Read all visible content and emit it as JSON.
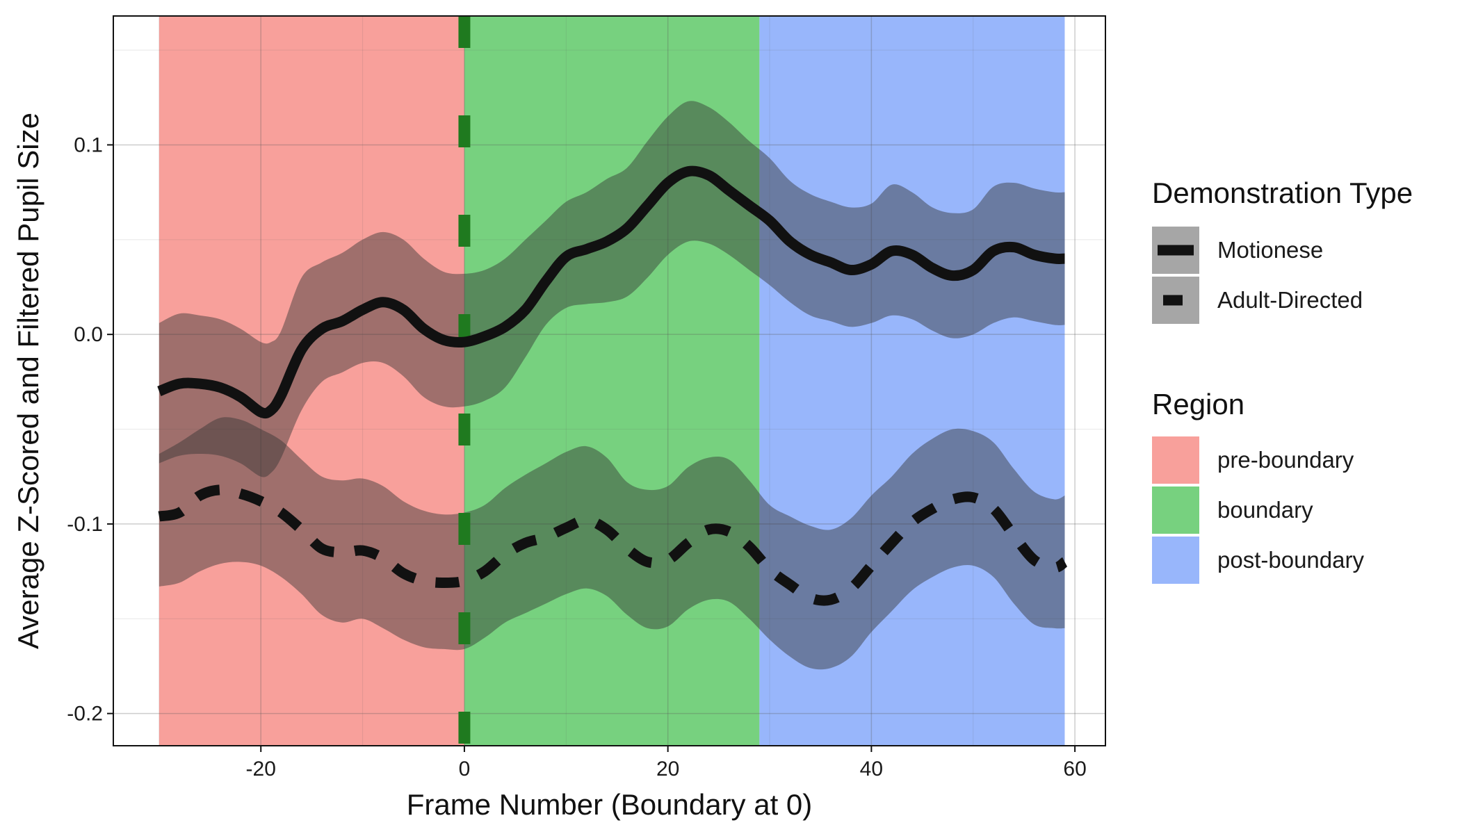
{
  "chart_data": {
    "type": "line",
    "title": "",
    "xlabel": "Frame Number (Boundary at 0)",
    "ylabel": "Average Z-Scored and Filtered Pupil Size",
    "xlim": [
      -34.5,
      63
    ],
    "ylim": [
      -0.217,
      0.168
    ],
    "xticks": [
      -20,
      0,
      20,
      40,
      60
    ],
    "xtick_labels": [
      "-20",
      "0",
      "20",
      "40",
      "60"
    ],
    "yticks": [
      -0.2,
      -0.1,
      0.0,
      0.1
    ],
    "ytick_labels": [
      "-0.2",
      "-0.1",
      "0.0",
      "0.1"
    ],
    "grid": true,
    "boundary_line": {
      "x": 0,
      "color": "#1f7a1f",
      "style": "dashed"
    },
    "regions": [
      {
        "name": "pre-boundary",
        "start": -30,
        "end": 0,
        "color": "#f8a09b"
      },
      {
        "name": "boundary",
        "start": 0,
        "end": 29,
        "color": "#77d17f"
      },
      {
        "name": "post-boundary",
        "start": 29,
        "end": 59,
        "color": "#98b6fb"
      }
    ],
    "series": [
      {
        "name": "Motionese",
        "style": "solid",
        "x": [
          -30,
          -28,
          -26,
          -24,
          -22,
          -20,
          -19,
          -18,
          -16,
          -14,
          -12,
          -10,
          -8,
          -6,
          -4,
          -2,
          0,
          2,
          4,
          6,
          8,
          10,
          12,
          14,
          16,
          18,
          20,
          22,
          24,
          26,
          28,
          30,
          32,
          34,
          36,
          38,
          40,
          42,
          44,
          46,
          48,
          50,
          52,
          54,
          56,
          58,
          59
        ],
        "y": [
          -0.03,
          -0.026,
          -0.026,
          -0.028,
          -0.033,
          -0.041,
          -0.04,
          -0.032,
          -0.008,
          0.003,
          0.007,
          0.013,
          0.017,
          0.013,
          0.003,
          -0.003,
          -0.004,
          -0.001,
          0.004,
          0.013,
          0.028,
          0.041,
          0.045,
          0.049,
          0.056,
          0.068,
          0.08,
          0.086,
          0.084,
          0.076,
          0.068,
          0.06,
          0.049,
          0.042,
          0.038,
          0.034,
          0.037,
          0.044,
          0.042,
          0.035,
          0.031,
          0.034,
          0.044,
          0.046,
          0.042,
          0.04,
          0.04
        ],
        "ci_lower": [
          -0.068,
          -0.064,
          -0.063,
          -0.064,
          -0.068,
          -0.075,
          -0.073,
          -0.065,
          -0.04,
          -0.025,
          -0.02,
          -0.015,
          -0.015,
          -0.022,
          -0.033,
          -0.038,
          -0.038,
          -0.035,
          -0.028,
          -0.012,
          0.005,
          0.014,
          0.016,
          0.017,
          0.02,
          0.03,
          0.042,
          0.049,
          0.048,
          0.042,
          0.034,
          0.026,
          0.017,
          0.01,
          0.007,
          0.004,
          0.006,
          0.01,
          0.008,
          0.002,
          -0.002,
          0.0,
          0.006,
          0.009,
          0.007,
          0.005,
          0.005
        ],
        "ci_upper": [
          0.006,
          0.011,
          0.01,
          0.008,
          0.003,
          -0.004,
          -0.004,
          0.002,
          0.03,
          0.038,
          0.043,
          0.05,
          0.054,
          0.05,
          0.04,
          0.033,
          0.032,
          0.034,
          0.04,
          0.05,
          0.06,
          0.07,
          0.075,
          0.082,
          0.088,
          0.102,
          0.115,
          0.123,
          0.12,
          0.112,
          0.102,
          0.093,
          0.081,
          0.074,
          0.07,
          0.067,
          0.069,
          0.079,
          0.075,
          0.067,
          0.064,
          0.066,
          0.078,
          0.08,
          0.077,
          0.075,
          0.075
        ]
      },
      {
        "name": "Adult-Directed",
        "style": "dashed",
        "x": [
          -30,
          -28,
          -26,
          -24,
          -22,
          -20,
          -18,
          -16,
          -14,
          -12,
          -10,
          -8,
          -6,
          -4,
          -2,
          0,
          2,
          4,
          6,
          8,
          10,
          12,
          14,
          16,
          18,
          20,
          22,
          24,
          26,
          28,
          30,
          32,
          34,
          36,
          38,
          40,
          42,
          44,
          46,
          48,
          50,
          52,
          54,
          56,
          58,
          59
        ],
        "y": [
          -0.096,
          -0.094,
          -0.085,
          -0.082,
          -0.084,
          -0.088,
          -0.094,
          -0.103,
          -0.113,
          -0.115,
          -0.114,
          -0.118,
          -0.126,
          -0.13,
          -0.131,
          -0.13,
          -0.125,
          -0.116,
          -0.11,
          -0.107,
          -0.102,
          -0.098,
          -0.103,
          -0.113,
          -0.12,
          -0.119,
          -0.11,
          -0.103,
          -0.104,
          -0.112,
          -0.124,
          -0.132,
          -0.139,
          -0.14,
          -0.134,
          -0.122,
          -0.11,
          -0.099,
          -0.092,
          -0.087,
          -0.086,
          -0.092,
          -0.106,
          -0.119,
          -0.123,
          -0.12
        ],
        "ci_lower": [
          -0.133,
          -0.131,
          -0.125,
          -0.121,
          -0.12,
          -0.122,
          -0.128,
          -0.137,
          -0.148,
          -0.152,
          -0.15,
          -0.155,
          -0.161,
          -0.165,
          -0.166,
          -0.166,
          -0.16,
          -0.152,
          -0.147,
          -0.142,
          -0.137,
          -0.134,
          -0.138,
          -0.148,
          -0.155,
          -0.154,
          -0.145,
          -0.14,
          -0.141,
          -0.15,
          -0.161,
          -0.17,
          -0.176,
          -0.176,
          -0.17,
          -0.157,
          -0.146,
          -0.135,
          -0.128,
          -0.123,
          -0.122,
          -0.128,
          -0.142,
          -0.153,
          -0.155,
          -0.155
        ],
        "ci_upper": [
          -0.063,
          -0.057,
          -0.05,
          -0.044,
          -0.045,
          -0.05,
          -0.056,
          -0.066,
          -0.075,
          -0.077,
          -0.076,
          -0.08,
          -0.088,
          -0.093,
          -0.095,
          -0.094,
          -0.09,
          -0.081,
          -0.074,
          -0.068,
          -0.062,
          -0.059,
          -0.065,
          -0.078,
          -0.082,
          -0.08,
          -0.07,
          -0.065,
          -0.066,
          -0.077,
          -0.09,
          -0.096,
          -0.101,
          -0.103,
          -0.097,
          -0.085,
          -0.075,
          -0.063,
          -0.055,
          -0.05,
          -0.051,
          -0.057,
          -0.071,
          -0.083,
          -0.087,
          -0.085
        ]
      }
    ],
    "ribbon_color": "#333333",
    "ribbon_opacity": 0.45,
    "line_color": "#111111",
    "legend": {
      "placement": "right",
      "groups": [
        {
          "title": "Demonstration Type",
          "entries": [
            {
              "label": "Motionese",
              "kind": "line",
              "style": "solid"
            },
            {
              "label": "Adult-Directed",
              "kind": "line",
              "style": "dashed"
            }
          ]
        },
        {
          "title": "Region",
          "entries": [
            {
              "label": "pre-boundary",
              "kind": "fill",
              "color": "#f8a09b"
            },
            {
              "label": "boundary",
              "kind": "fill",
              "color": "#77d17f"
            },
            {
              "label": "post-boundary",
              "kind": "fill",
              "color": "#98b6fb"
            }
          ]
        }
      ]
    }
  }
}
